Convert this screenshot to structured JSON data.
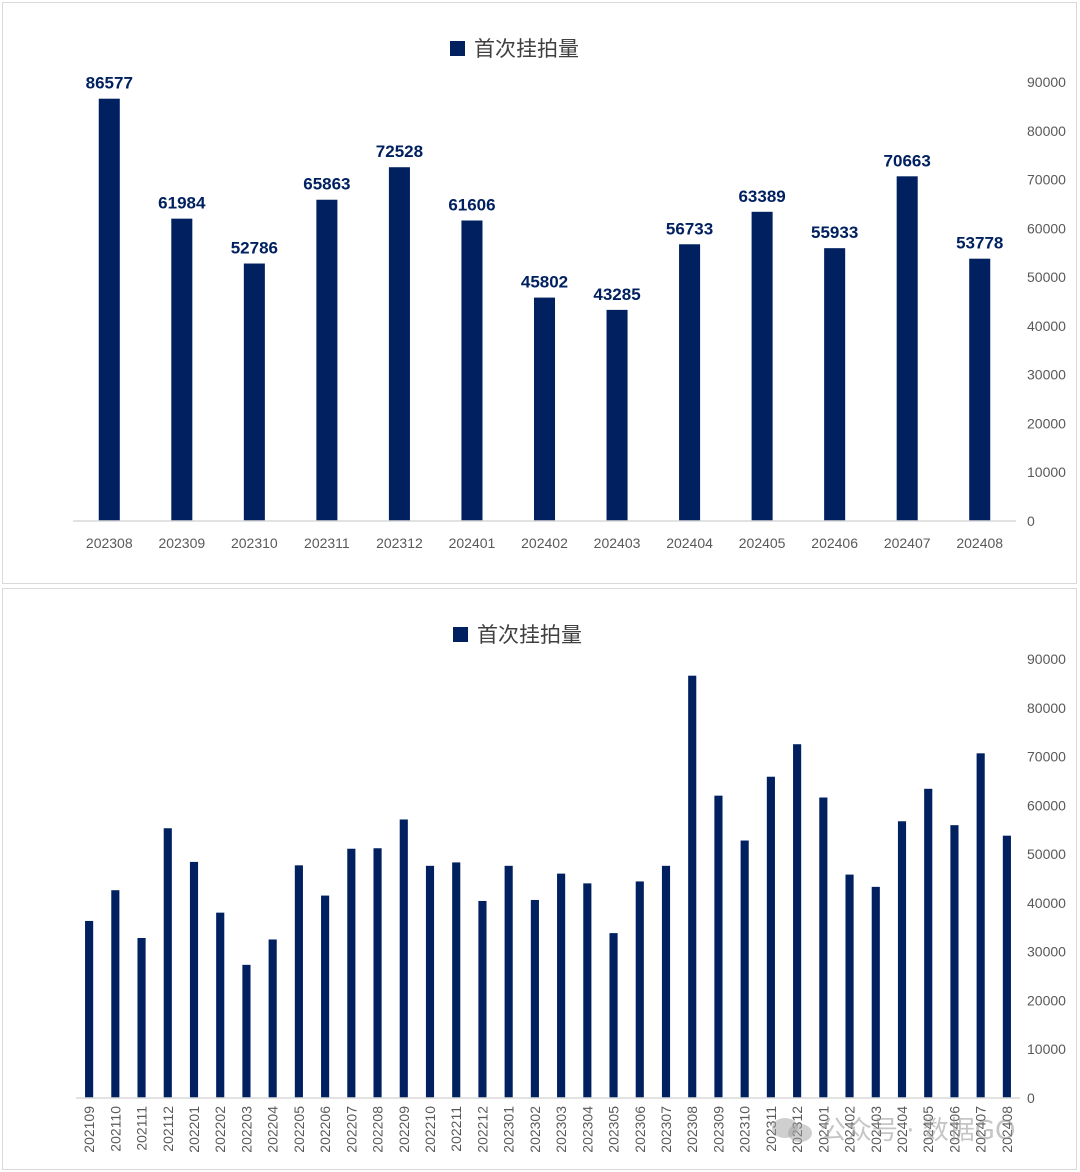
{
  "colors": {
    "bar": "#002060",
    "axis": "#d9d9d9",
    "tick": "#595959",
    "label": "#002060"
  },
  "chart_data": [
    {
      "type": "bar",
      "legend": [
        "首次挂拍量"
      ],
      "legend_position": "top",
      "categories": [
        "202308",
        "202309",
        "202310",
        "202311",
        "202312",
        "202401",
        "202402",
        "202403",
        "202404",
        "202405",
        "202406",
        "202407",
        "202408"
      ],
      "series": [
        {
          "name": "首次挂拍量",
          "values": [
            86577,
            61984,
            52786,
            65863,
            72528,
            61606,
            45802,
            43285,
            56733,
            63389,
            55933,
            70663,
            53778
          ]
        }
      ],
      "data_labels": true,
      "y_axis_side": "right",
      "ylim": [
        0,
        90000
      ],
      "yticks": [
        0,
        10000,
        20000,
        30000,
        40000,
        50000,
        60000,
        70000,
        80000,
        90000
      ],
      "grid": false
    },
    {
      "type": "bar",
      "legend": [
        "首次挂拍量"
      ],
      "legend_position": "top",
      "categories": [
        "202109",
        "202110",
        "202111",
        "202112",
        "202201",
        "202202",
        "202203",
        "202204",
        "202205",
        "202206",
        "202207",
        "202208",
        "202209",
        "202210",
        "202211",
        "202212",
        "202301",
        "202302",
        "202303",
        "202304",
        "202305",
        "202306",
        "202307",
        "202308",
        "202309",
        "202310",
        "202311",
        "202312",
        "202401",
        "202402",
        "202403",
        "202404",
        "202405",
        "202406",
        "202407",
        "202408"
      ],
      "series": [
        {
          "name": "首次挂拍量",
          "values": [
            36300,
            42600,
            32800,
            55300,
            48400,
            38000,
            27300,
            32500,
            47700,
            41500,
            51100,
            51200,
            57100,
            47600,
            48300,
            40400,
            47600,
            40600,
            46000,
            44000,
            33800,
            44400,
            47600,
            86577,
            61984,
            52786,
            65863,
            72528,
            61606,
            45802,
            43285,
            56733,
            63389,
            55933,
            70663,
            53778
          ]
        }
      ],
      "data_labels": false,
      "y_axis_side": "right",
      "x_label_rotation": "vertical",
      "ylim": [
        0,
        90000
      ],
      "yticks": [
        0,
        10000,
        20000,
        30000,
        40000,
        50000,
        60000,
        70000,
        80000,
        90000
      ],
      "grid": false
    }
  ],
  "watermark": {
    "text": "公众号 · 数据GO",
    "icon": "wechat-icon"
  }
}
